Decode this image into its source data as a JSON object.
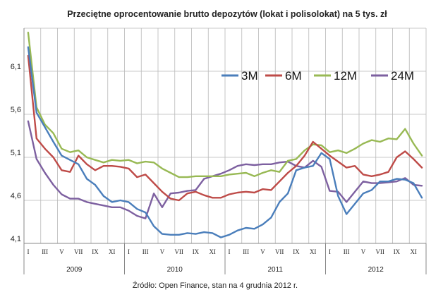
{
  "chart_data": {
    "type": "line",
    "title": "Przeciętne oprocentowanie  brutto  depozytów (lokat i polisolokat) na 5 tys. zł",
    "xlabel": "",
    "ylabel": "",
    "ylim": [
      4.1,
      6.6
    ],
    "y_ticks": [
      "4,1",
      "4,6",
      "5,1",
      "5,6",
      "6,1"
    ],
    "y_tick_values": [
      4.1,
      4.6,
      5.1,
      5.6,
      6.1
    ],
    "month_labels": [
      "I",
      "III",
      "V",
      "VII",
      "IX",
      "XI"
    ],
    "years": [
      "2009",
      "2010",
      "2011",
      "2012"
    ],
    "grid": "horizontal and vertical",
    "legend_position": "top-right",
    "source": "Źródło: Open Finance, stan na 4 grudnia 2012 r.",
    "series": [
      {
        "name": "3M",
        "color": "#4a7ebb",
        "values": [
          6.38,
          5.62,
          5.45,
          5.28,
          5.12,
          5.07,
          5.02,
          4.85,
          4.78,
          4.65,
          4.58,
          4.6,
          4.58,
          4.5,
          4.46,
          4.3,
          4.21,
          4.2,
          4.2,
          4.22,
          4.21,
          4.23,
          4.22,
          4.17,
          4.2,
          4.25,
          4.28,
          4.27,
          4.32,
          4.4,
          4.58,
          4.68,
          4.95,
          4.98,
          5.0,
          5.15,
          5.08,
          4.65,
          4.44,
          4.56,
          4.68,
          4.72,
          4.82,
          4.82,
          4.85,
          4.84,
          4.8,
          4.63
        ]
      },
      {
        "name": "6M",
        "color": "#be4b48",
        "values": [
          6.28,
          5.32,
          5.2,
          5.1,
          4.95,
          4.93,
          5.12,
          5.02,
          4.95,
          5.0,
          5.0,
          4.99,
          4.97,
          4.87,
          4.9,
          4.8,
          4.7,
          4.62,
          4.6,
          4.68,
          4.7,
          4.66,
          4.63,
          4.63,
          4.67,
          4.69,
          4.7,
          4.69,
          4.73,
          4.72,
          4.82,
          4.92,
          5.0,
          5.12,
          5.28,
          5.2,
          5.12,
          5.05,
          4.98,
          5.0,
          4.9,
          4.88,
          4.9,
          4.93,
          5.1,
          5.17,
          5.08,
          4.98
        ]
      },
      {
        "name": "12M",
        "color": "#98b954",
        "values": [
          6.55,
          5.68,
          5.48,
          5.38,
          5.2,
          5.16,
          5.18,
          5.1,
          5.07,
          5.04,
          5.07,
          5.06,
          5.07,
          5.03,
          5.05,
          5.04,
          4.97,
          4.92,
          4.87,
          4.87,
          4.88,
          4.88,
          4.88,
          4.88,
          4.9,
          4.91,
          4.92,
          4.88,
          4.92,
          4.95,
          4.93,
          5.06,
          5.08,
          5.18,
          5.25,
          5.24,
          5.16,
          5.18,
          5.15,
          5.2,
          5.26,
          5.3,
          5.28,
          5.32,
          5.31,
          5.43,
          5.26,
          5.12
        ]
      },
      {
        "name": "24M",
        "color": "#7d60a0",
        "values": [
          5.52,
          5.08,
          4.92,
          4.78,
          4.67,
          4.62,
          4.62,
          4.58,
          4.56,
          4.54,
          4.52,
          4.52,
          4.48,
          4.42,
          4.39,
          4.68,
          4.52,
          4.68,
          4.69,
          4.71,
          4.72,
          4.85,
          4.88,
          4.91,
          4.95,
          5.0,
          5.02,
          5.01,
          5.02,
          5.02,
          5.04,
          5.05,
          5.0,
          4.98,
          5.06,
          4.99,
          4.71,
          4.7,
          4.58,
          4.7,
          4.82,
          4.8,
          4.8,
          4.81,
          4.82,
          4.86,
          4.78,
          4.77
        ]
      }
    ]
  }
}
